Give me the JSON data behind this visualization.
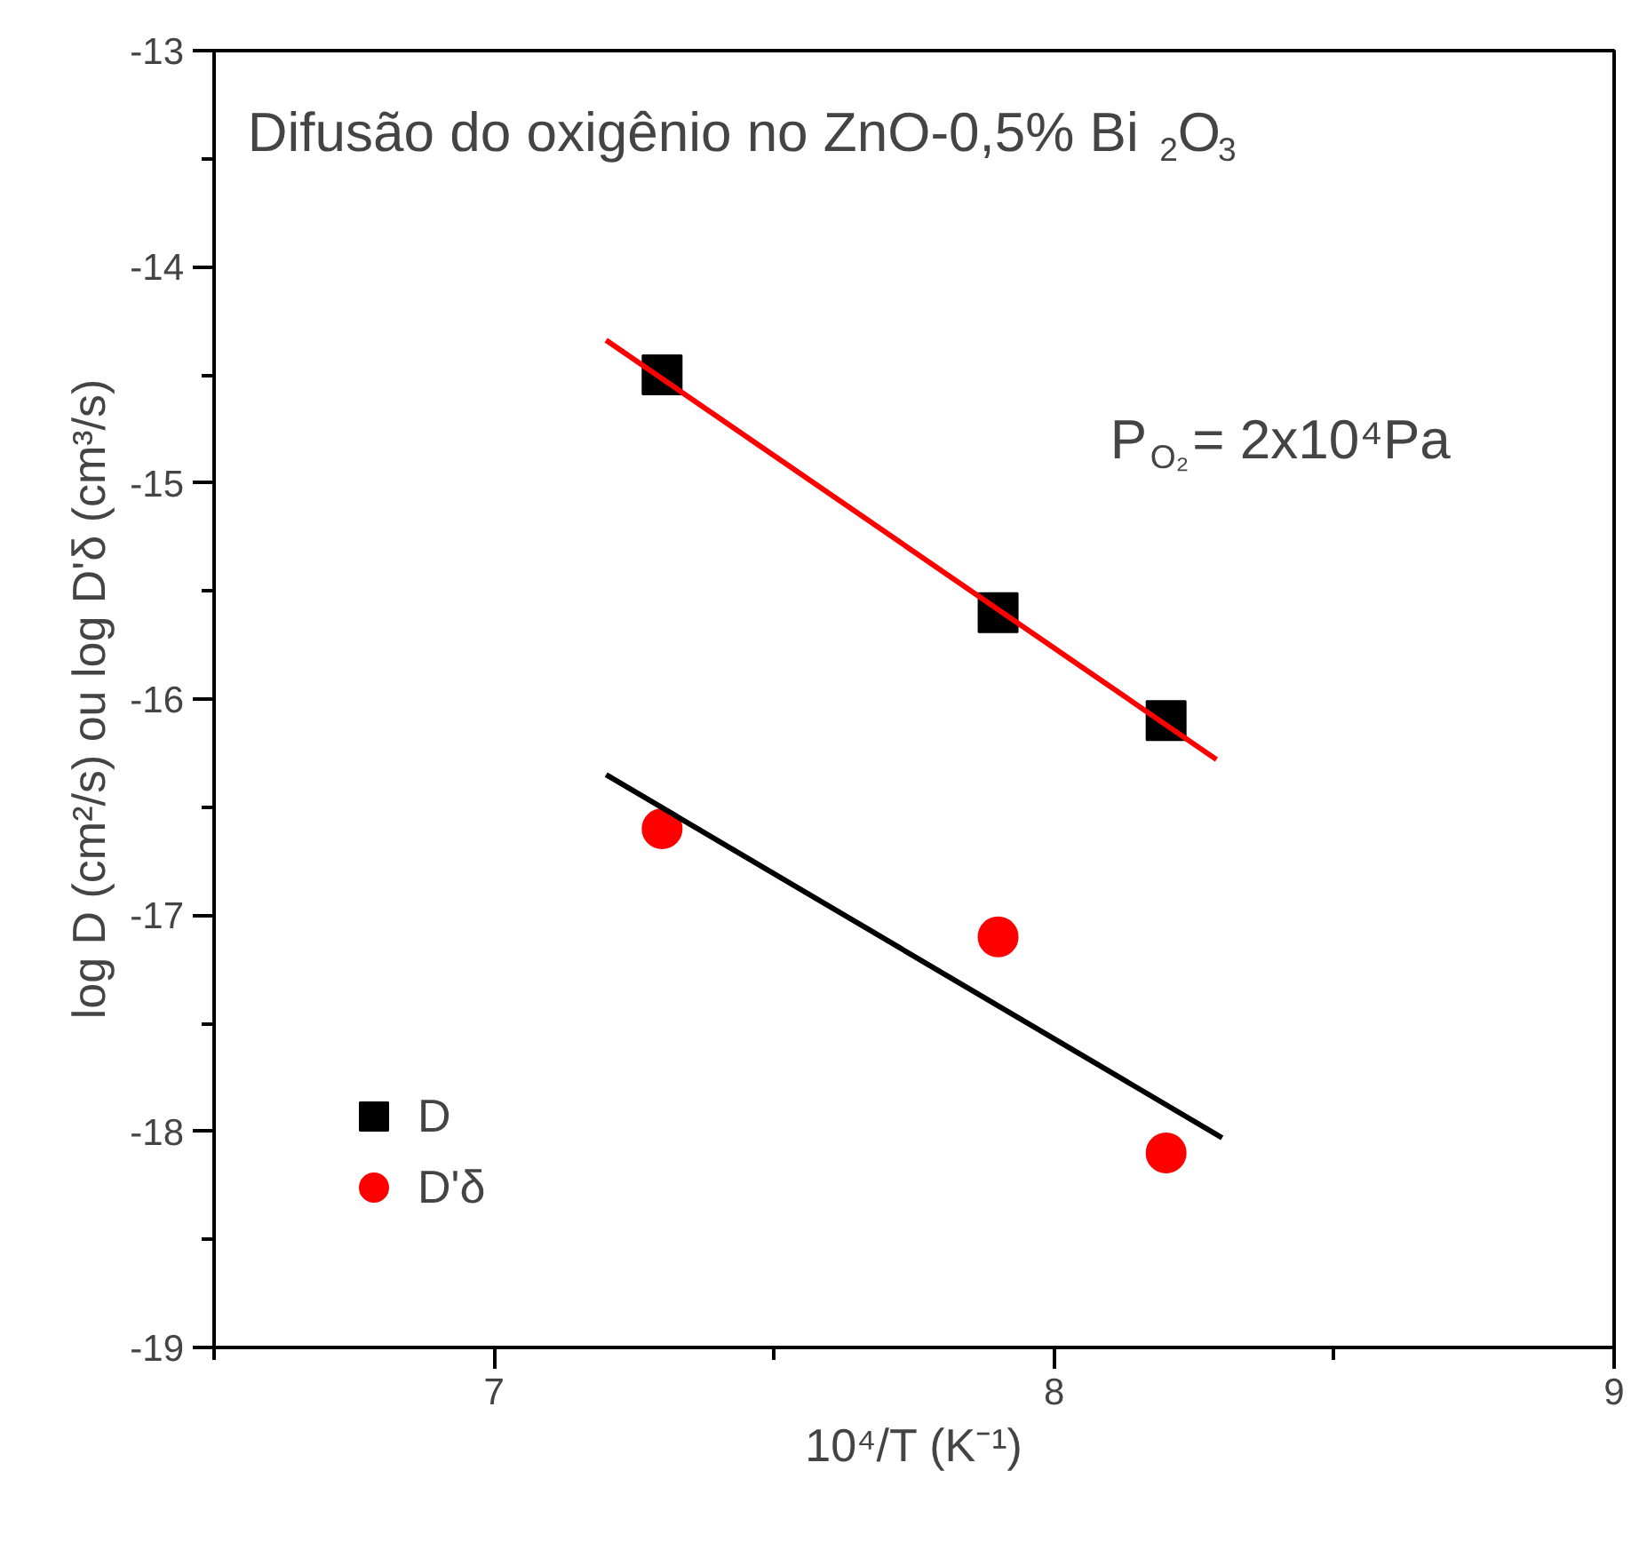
{
  "chart_data": {
    "type": "scatter",
    "title": "Difusão do oxigênio no ZnO-0,5% Bi$_{2}$O$_{3}$",
    "xlabel": "10⁴/T (K⁻¹)",
    "ylabel": "log D (cm²/s) ou log D'δ (cm³/s)",
    "annotations": [
      "P$_{O₂}$= 2x10⁴Pa"
    ],
    "series": [
      {
        "name": "D",
        "marker": "square",
        "color": "#000000",
        "x": [
          7.3,
          7.9,
          8.2
        ],
        "values": [
          -14.5,
          -15.6,
          -16.1
        ]
      },
      {
        "name": "D'δ",
        "marker": "circle",
        "color": "#ff0000",
        "x": [
          7.3,
          7.9,
          8.2
        ],
        "values": [
          -16.6,
          -17.1,
          -18.1
        ]
      },
      {
        "type": "line",
        "color": "#ff0000",
        "x": [
          7.2,
          8.29
        ],
        "values": [
          -14.34,
          -16.28
        ]
      },
      {
        "type": "line",
        "color": "#000000",
        "x": [
          7.2,
          8.3
        ],
        "values": [
          -16.35,
          -18.03
        ]
      }
    ],
    "xlim": [
      6.5,
      9
    ],
    "ylim": [
      -19,
      -13
    ],
    "xticks": [
      {
        "value": 6.5,
        "label": null
      },
      7,
      {
        "value": 7.5,
        "label": null
      },
      8,
      {
        "value": 8.5,
        "label": null
      },
      9
    ],
    "yticks": [
      -19,
      {
        "value": -18.5,
        "label": null
      },
      -18,
      {
        "value": -17.5,
        "label": null
      },
      -17,
      {
        "value": -16.5,
        "label": null
      },
      -16,
      {
        "value": -15.5,
        "label": null
      },
      -15,
      {
        "value": -14.5,
        "label": null
      },
      -14,
      {
        "value": -13.5,
        "label": null
      },
      -13
    ],
    "grid": false,
    "legend": "bottom left"
  }
}
